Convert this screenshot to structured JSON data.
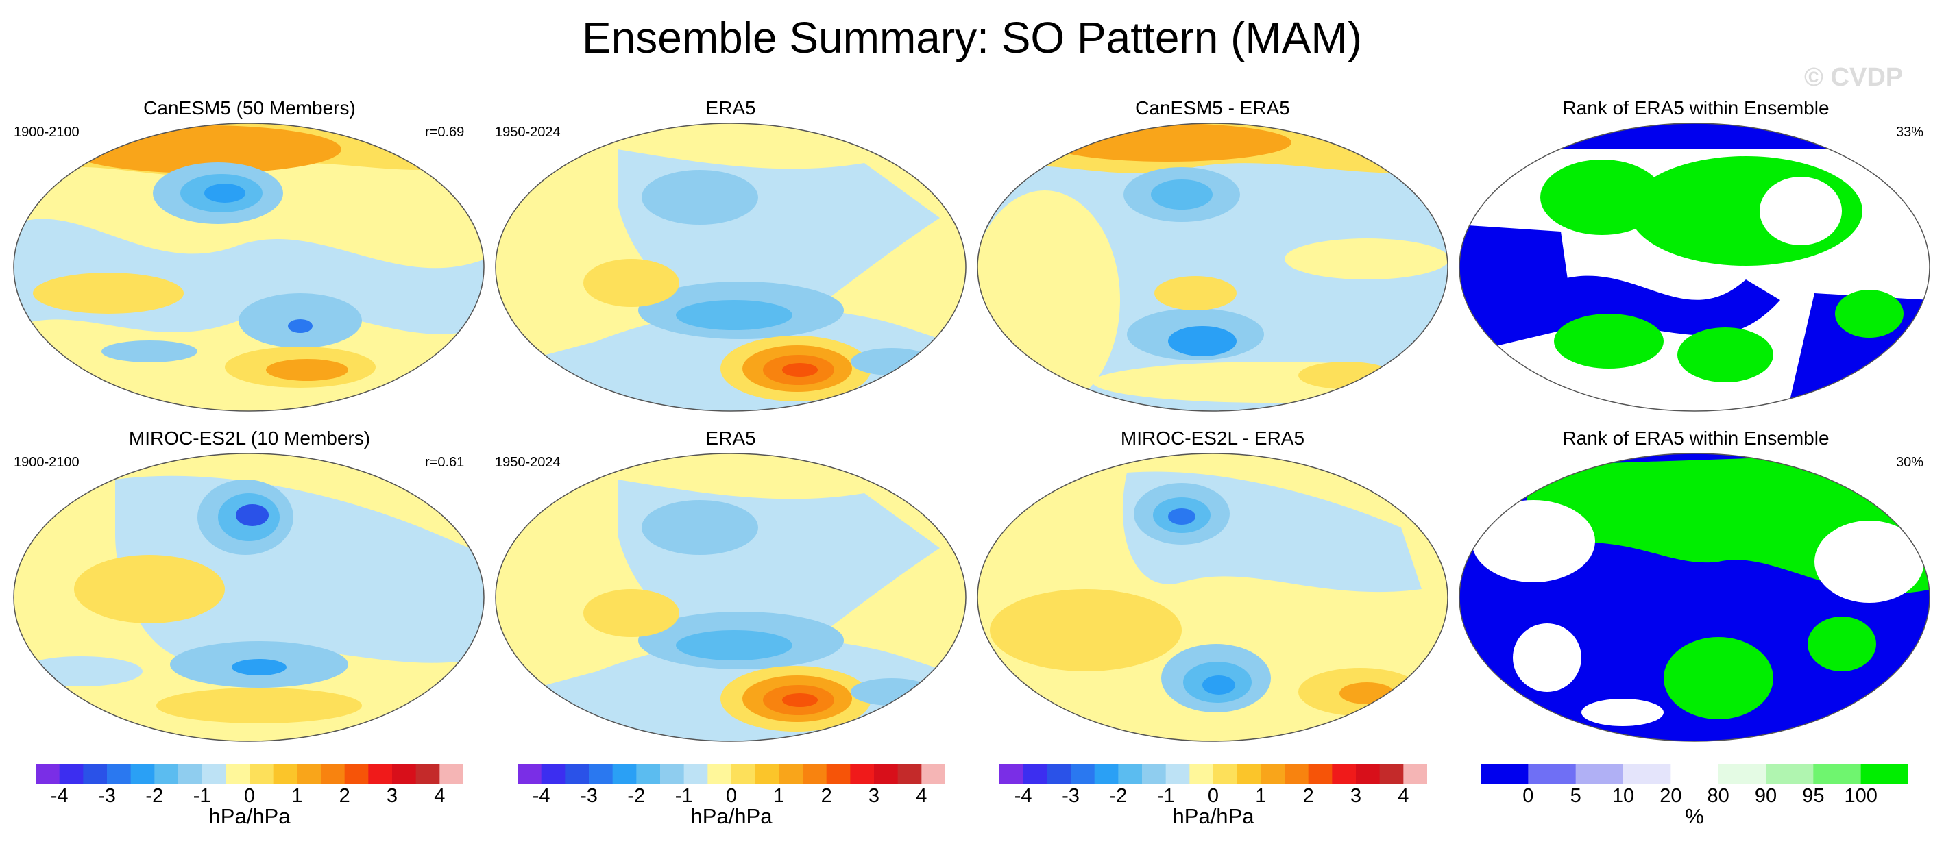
{
  "title": "Ensemble Summary: SO Pattern (MAM)",
  "watermark": "© CVDP",
  "rows": [
    {
      "model": {
        "title": "CanESM5 (50 Members)",
        "period": "1900-2100",
        "corr": "r=0.69"
      },
      "obs": {
        "title": "ERA5",
        "period": "1950-2024"
      },
      "diff": {
        "title": "CanESM5 - ERA5"
      },
      "rank": {
        "title": "Rank of ERA5 within Ensemble",
        "percent": "33%"
      }
    },
    {
      "model": {
        "title": "MIROC-ES2L (10 Members)",
        "period": "1900-2100",
        "corr": "r=0.61"
      },
      "obs": {
        "title": "ERA5",
        "period": "1950-2024"
      },
      "diff": {
        "title": "MIROC-ES2L - ERA5"
      },
      "rank": {
        "title": "Rank of ERA5 within Ensemble",
        "percent": "30%"
      }
    }
  ],
  "colorbar_pattern": {
    "label": "hPa/hPa",
    "ticks": [
      "-4",
      "-3",
      "-2",
      "-1",
      "0",
      "1",
      "2",
      "3",
      "4"
    ],
    "colors": [
      "#7a2ee6",
      "#3c2ef0",
      "#2a52e8",
      "#2a78f0",
      "#2aa0f5",
      "#5bbcf0",
      "#8fcdef",
      "#bde2f5",
      "#fff79a",
      "#fde05a",
      "#fbc52a",
      "#f9a51a",
      "#f8830f",
      "#f65408",
      "#f01a1a",
      "#d80f1a",
      "#c42a2a",
      "#f5b5b5"
    ]
  },
  "colorbar_rank": {
    "label": "%",
    "ticks": [
      "0",
      "5",
      "10",
      "20",
      "80",
      "90",
      "95",
      "100"
    ],
    "colors": [
      "#0000ee",
      "#6f6ff5",
      "#b0b0f5",
      "#e4e4fb",
      "#ffffff",
      "#e4fbe4",
      "#b0f5b0",
      "#6ff56f",
      "#00ee00"
    ]
  },
  "chart_data": [
    {
      "type": "heatmap",
      "title": "CanESM5 (50 Members)",
      "period": "1900-2100",
      "pattern_correlation": 0.69,
      "units": "hPa/hPa",
      "levels": [
        -4,
        -3.5,
        -3,
        -2.5,
        -2,
        -1.5,
        -1,
        -0.5,
        0,
        0.5,
        1,
        1.5,
        2,
        2.5,
        3,
        3.5,
        4
      ]
    },
    {
      "type": "heatmap",
      "title": "ERA5",
      "period": "1950-2024",
      "units": "hPa/hPa"
    },
    {
      "type": "heatmap",
      "title": "CanESM5 - ERA5",
      "units": "hPa/hPa"
    },
    {
      "type": "heatmap",
      "title": "Rank of ERA5 within Ensemble",
      "value": "33%",
      "units": "%",
      "levels": [
        0,
        5,
        10,
        20,
        80,
        90,
        95,
        100
      ]
    },
    {
      "type": "heatmap",
      "title": "MIROC-ES2L (10 Members)",
      "period": "1900-2100",
      "pattern_correlation": 0.61,
      "units": "hPa/hPa"
    },
    {
      "type": "heatmap",
      "title": "ERA5",
      "period": "1950-2024",
      "units": "hPa/hPa"
    },
    {
      "type": "heatmap",
      "title": "MIROC-ES2L - ERA5",
      "units": "hPa/hPa"
    },
    {
      "type": "heatmap",
      "title": "Rank of ERA5 within Ensemble",
      "value": "30%",
      "units": "%"
    }
  ]
}
